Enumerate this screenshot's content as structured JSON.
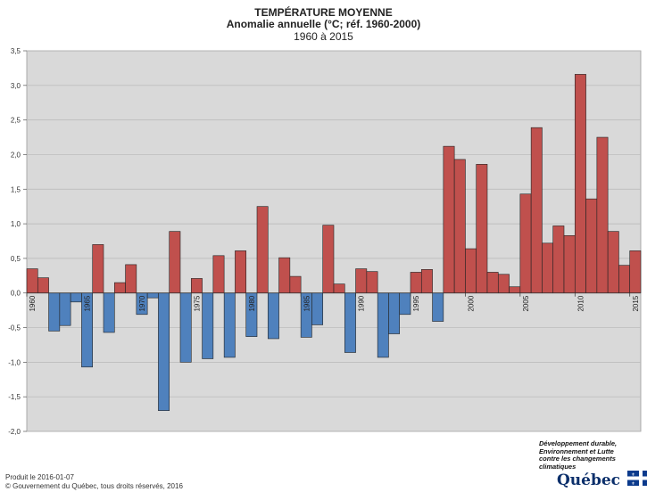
{
  "title": "TEMPÉRATURE MOYENNE",
  "subtitle": "Anomalie annuelle (°C; réf. 1960-2000)",
  "period": "1960 à 2015",
  "footer": {
    "produced": "Produit le 2016-01-07",
    "copyright": "© Gouvernement du Québec, tous droits réservés, 2016"
  },
  "brand": {
    "line1": "Développement durable,",
    "line2": "Environnement et Lutte",
    "line3": "contre les changements",
    "line4": "climatiques",
    "name": "Québec",
    "flag_icon": "fleur-de-lys-flag-icon"
  },
  "colors": {
    "positive": "#c0504d",
    "negative": "#4f81bd",
    "plot_bg": "#d9d9d9"
  },
  "chart_data": {
    "type": "bar",
    "x": [
      1960,
      1961,
      1962,
      1963,
      1964,
      1965,
      1966,
      1967,
      1968,
      1969,
      1970,
      1971,
      1972,
      1973,
      1974,
      1975,
      1976,
      1977,
      1978,
      1979,
      1980,
      1981,
      1982,
      1983,
      1984,
      1985,
      1986,
      1987,
      1988,
      1989,
      1990,
      1991,
      1992,
      1993,
      1994,
      1995,
      1996,
      1997,
      1998,
      1999,
      2000,
      2001,
      2002,
      2003,
      2004,
      2005,
      2006,
      2007,
      2008,
      2009,
      2010,
      2011,
      2012,
      2013,
      2014,
      2015
    ],
    "values": [
      0.35,
      0.22,
      -0.55,
      -0.47,
      -0.13,
      -1.07,
      0.7,
      -0.57,
      0.15,
      0.41,
      -0.31,
      -0.07,
      -1.7,
      0.89,
      -1.0,
      0.21,
      -0.95,
      0.54,
      -0.93,
      0.61,
      -0.63,
      1.25,
      -0.66,
      0.51,
      0.24,
      -0.64,
      -0.46,
      0.98,
      0.13,
      -0.86,
      0.35,
      0.31,
      -0.93,
      -0.59,
      -0.31,
      0.3,
      0.34,
      -0.41,
      2.12,
      1.93,
      0.64,
      1.86,
      0.3,
      0.27,
      0.09,
      1.43,
      2.39,
      0.72,
      0.97,
      0.83,
      3.16,
      1.36,
      2.25,
      0.89,
      0.4,
      0.61
    ],
    "xticks": [
      "1960",
      "1965",
      "1970",
      "1975",
      "1980",
      "1985",
      "1990",
      "1995",
      "2000",
      "2005",
      "2010",
      "2015"
    ],
    "yticks": [
      "3,5",
      "3,0",
      "2,5",
      "2,0",
      "1,5",
      "1,0",
      "0,5",
      "0,0",
      "-0,5",
      "-1,0",
      "-1,5",
      "-2,0"
    ],
    "ylim": [
      -2.0,
      3.5
    ],
    "grid": "horizontal"
  }
}
